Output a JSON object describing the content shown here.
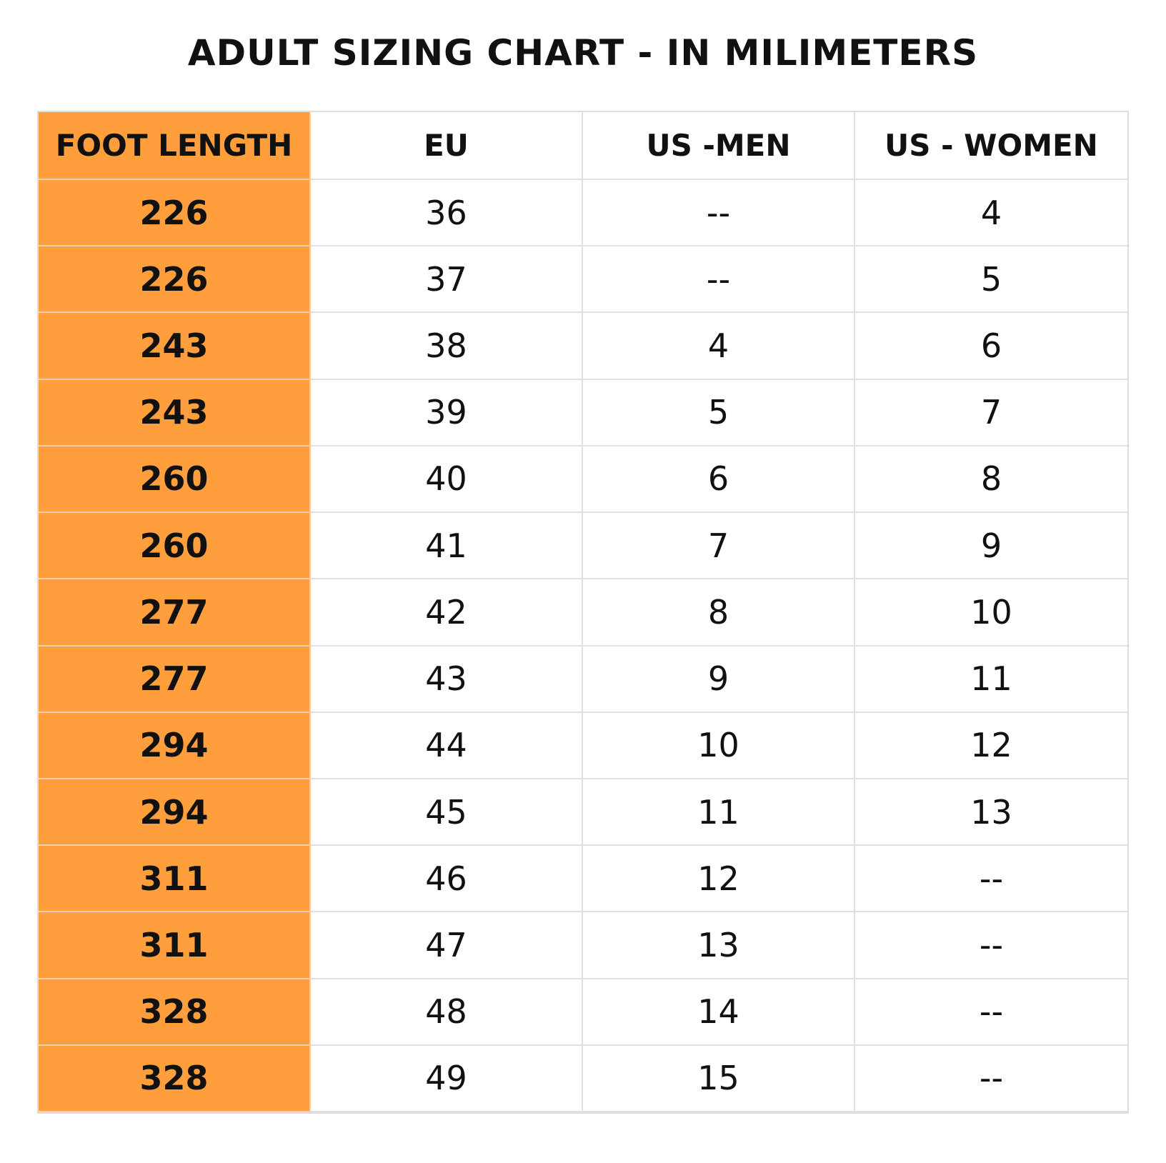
{
  "title": "ADULT SIZING CHART - IN MILIMETERS",
  "table": {
    "header": [
      "FOOT LENGTH",
      "EU",
      "US -MEN",
      "US - WOMEN"
    ],
    "rows": [
      [
        226,
        36,
        "--",
        4
      ],
      [
        226,
        37,
        "--",
        5
      ],
      [
        243,
        38,
        4,
        6
      ],
      [
        243,
        39,
        5,
        7
      ],
      [
        260,
        40,
        6,
        8
      ],
      [
        260,
        41,
        7,
        9
      ],
      [
        277,
        42,
        8,
        10
      ],
      [
        277,
        43,
        9,
        11
      ],
      [
        294,
        44,
        10,
        12
      ],
      [
        294,
        45,
        11,
        13
      ],
      [
        311,
        46,
        12,
        "--"
      ],
      [
        311,
        47,
        13,
        "--"
      ],
      [
        328,
        48,
        14,
        "--"
      ],
      [
        328,
        49,
        15,
        "--"
      ]
    ]
  }
}
